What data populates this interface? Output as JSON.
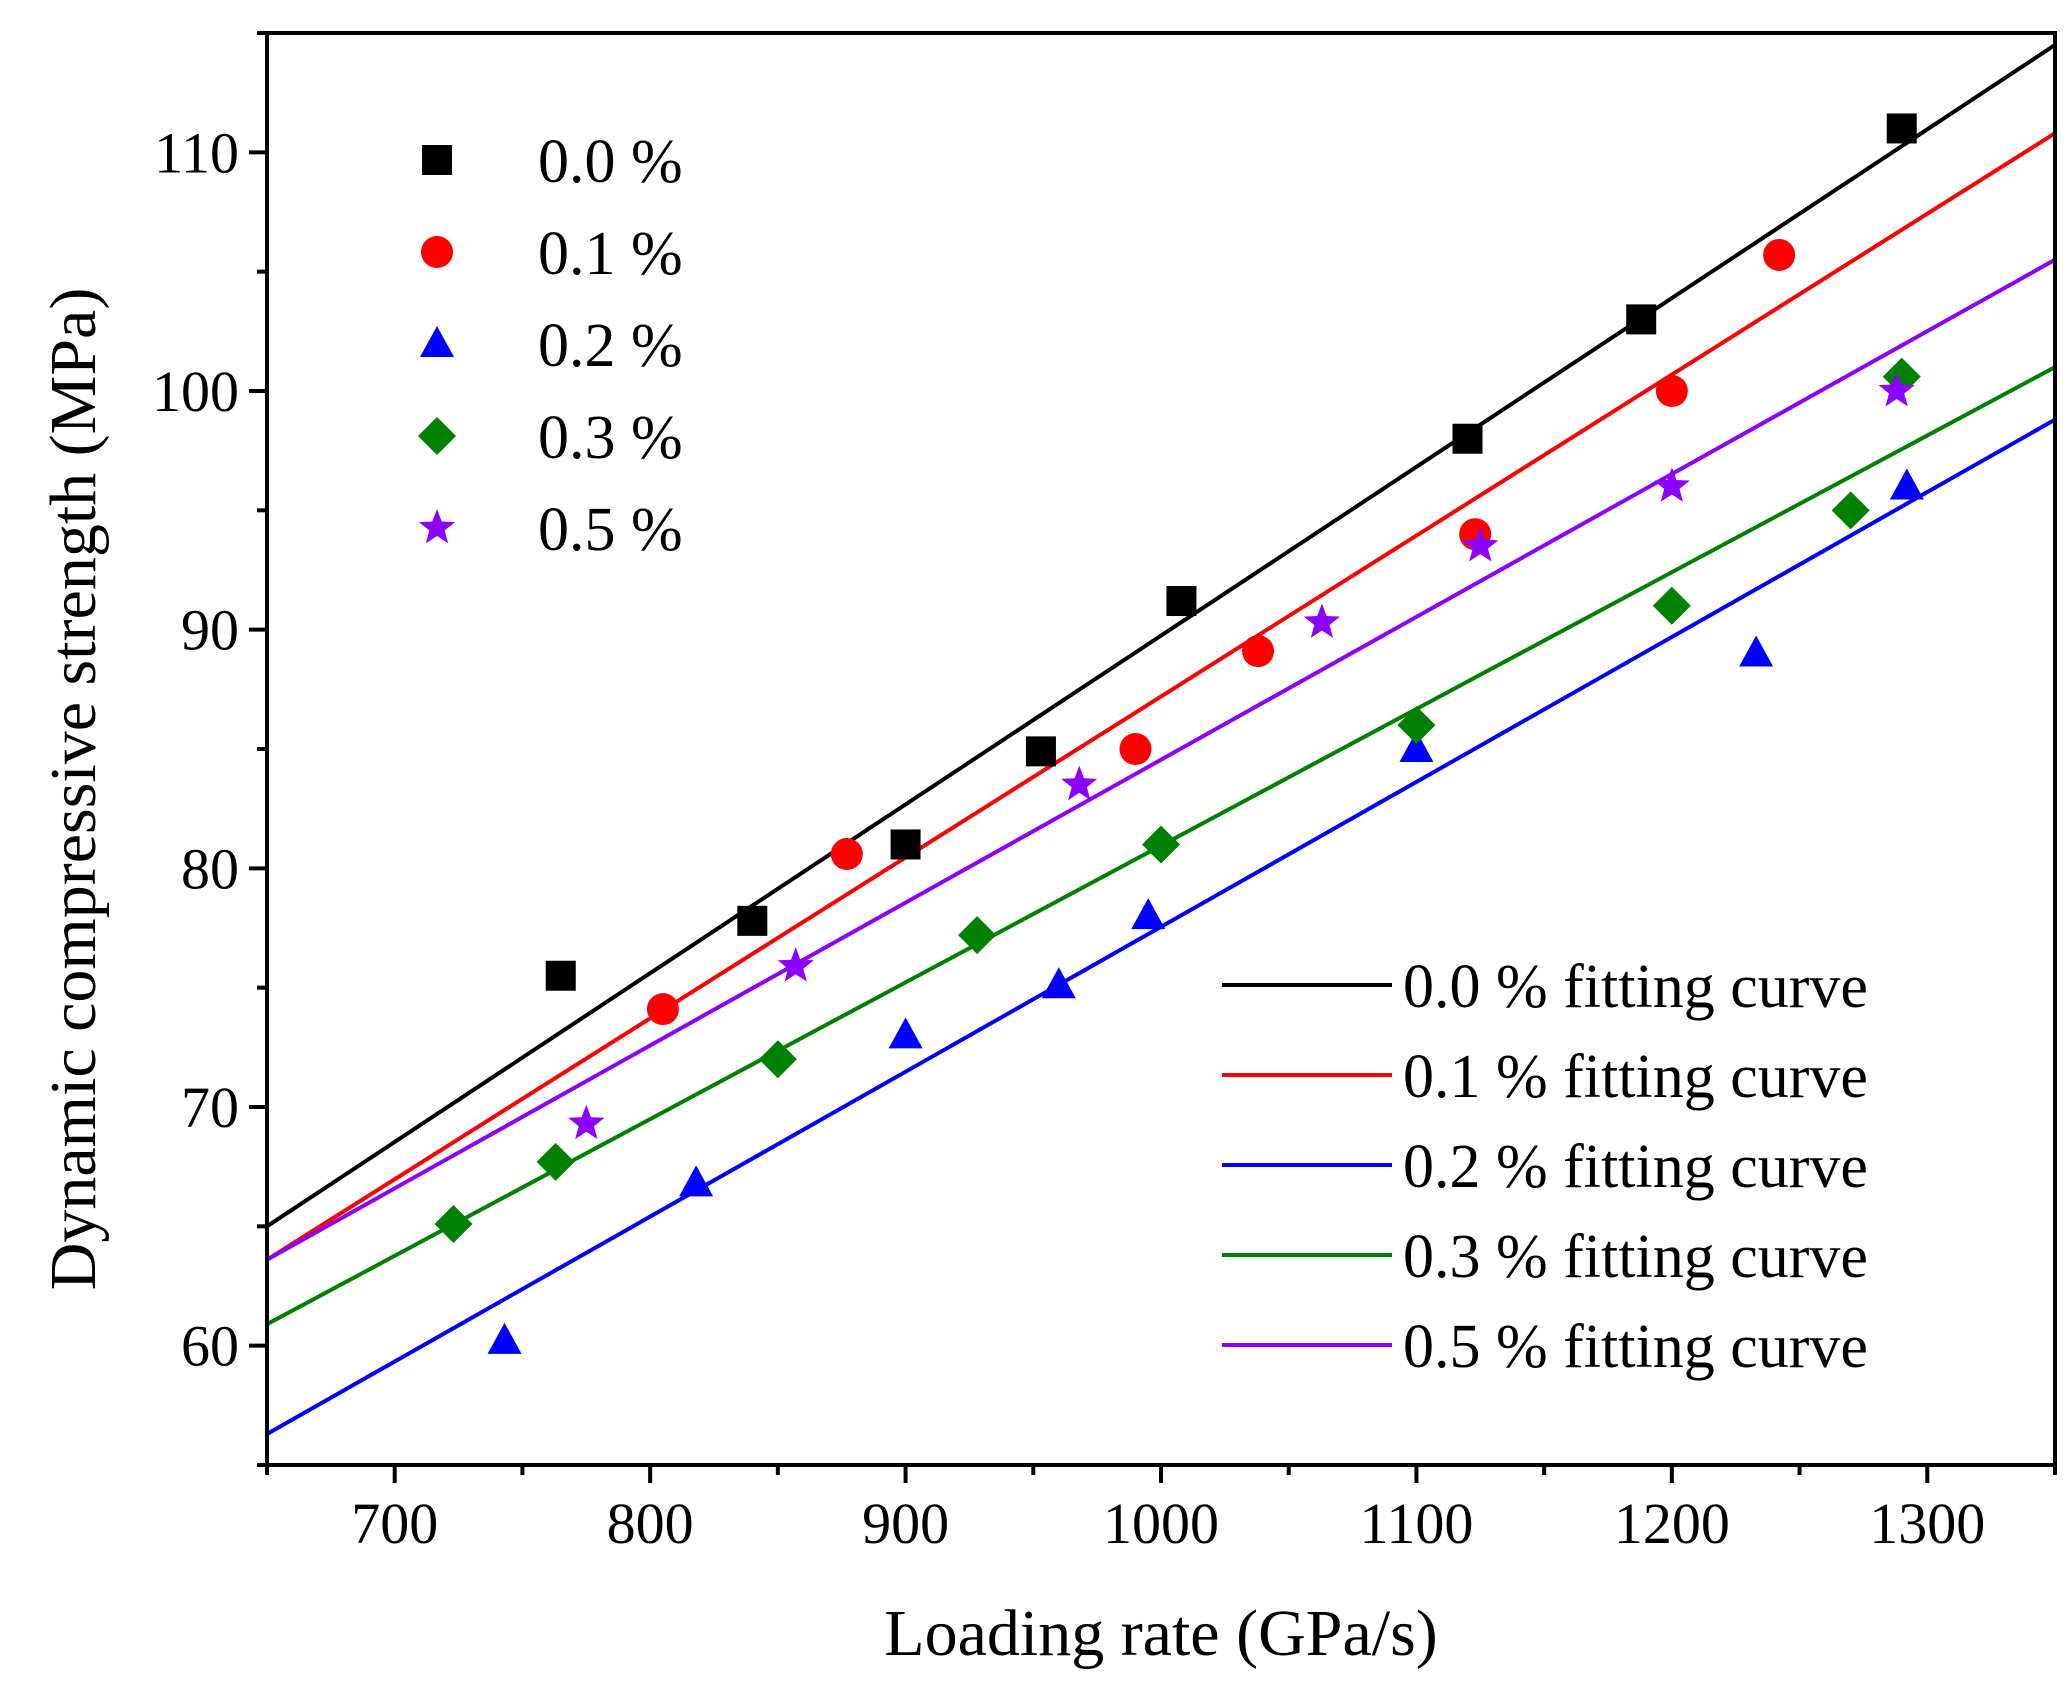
{
  "chart_data": {
    "type": "scatter",
    "title": "",
    "xlabel": "Loading rate (GPa/s)",
    "ylabel": "Dynamic compressive strength (MPa)",
    "xlim": [
      650,
      1350
    ],
    "ylim": [
      55,
      115
    ],
    "xticks": [
      700,
      800,
      900,
      1000,
      1100,
      1200,
      1300
    ],
    "yticks": [
      60,
      70,
      80,
      90,
      100,
      110
    ],
    "grid": false,
    "legend_markers": "top-left",
    "legend_lines": "bottom-right",
    "series": [
      {
        "name": "0.0 %",
        "fit_name": "0.0 % fitting curve",
        "marker": "square",
        "color": "#000000",
        "points": [
          [
            765,
            75.5
          ],
          [
            840,
            77.8
          ],
          [
            900,
            81
          ],
          [
            953,
            84.9
          ],
          [
            1008,
            91.2
          ],
          [
            1120,
            98
          ],
          [
            1188,
            103
          ],
          [
            1290,
            111
          ]
        ],
        "fit": [
          [
            650,
            65
          ],
          [
            1350,
            114.5
          ]
        ]
      },
      {
        "name": "0.1 %",
        "fit_name": "0.1 % fitting curve",
        "marker": "circle",
        "color": "#ff0000",
        "points": [
          [
            805,
            74.1
          ],
          [
            877,
            80.6
          ],
          [
            990,
            85
          ],
          [
            1038,
            89.1
          ],
          [
            1123,
            94
          ],
          [
            1200,
            100
          ],
          [
            1242,
            105.7
          ]
        ],
        "fit": [
          [
            650,
            63.6
          ],
          [
            1350,
            110.8
          ]
        ]
      },
      {
        "name": "0.2 %",
        "fit_name": "0.2 % fitting curve",
        "marker": "triangle",
        "color": "#0000ff",
        "points": [
          [
            743,
            60.2
          ],
          [
            818,
            66.8
          ],
          [
            900,
            73
          ],
          [
            960,
            75.1
          ],
          [
            995,
            78
          ],
          [
            1100,
            85
          ],
          [
            1233,
            89
          ],
          [
            1292,
            96
          ]
        ],
        "fit": [
          [
            650,
            56.3
          ],
          [
            1350,
            98.8
          ]
        ]
      },
      {
        "name": "0.3 %",
        "fit_name": "0.3 % fitting curve",
        "marker": "diamond",
        "color": "#008000",
        "points": [
          [
            723,
            65.1
          ],
          [
            763,
            67.7
          ],
          [
            850,
            72
          ],
          [
            928,
            77.2
          ],
          [
            1000,
            81
          ],
          [
            1100,
            86
          ],
          [
            1200,
            91
          ],
          [
            1270,
            95
          ],
          [
            1290,
            100.6
          ]
        ],
        "fit": [
          [
            650,
            60.9
          ],
          [
            1350,
            101
          ]
        ]
      },
      {
        "name": "0.5 %",
        "fit_name": "0.5 % fitting curve",
        "marker": "star",
        "color": "#8b00ff",
        "points": [
          [
            775,
            69.3
          ],
          [
            857,
            75.9
          ],
          [
            968,
            83.5
          ],
          [
            1063,
            90.3
          ],
          [
            1125,
            93.5
          ],
          [
            1200,
            96
          ],
          [
            1288,
            100
          ]
        ],
        "fit": [
          [
            650,
            63.6
          ],
          [
            1350,
            105.5
          ]
        ]
      }
    ]
  }
}
